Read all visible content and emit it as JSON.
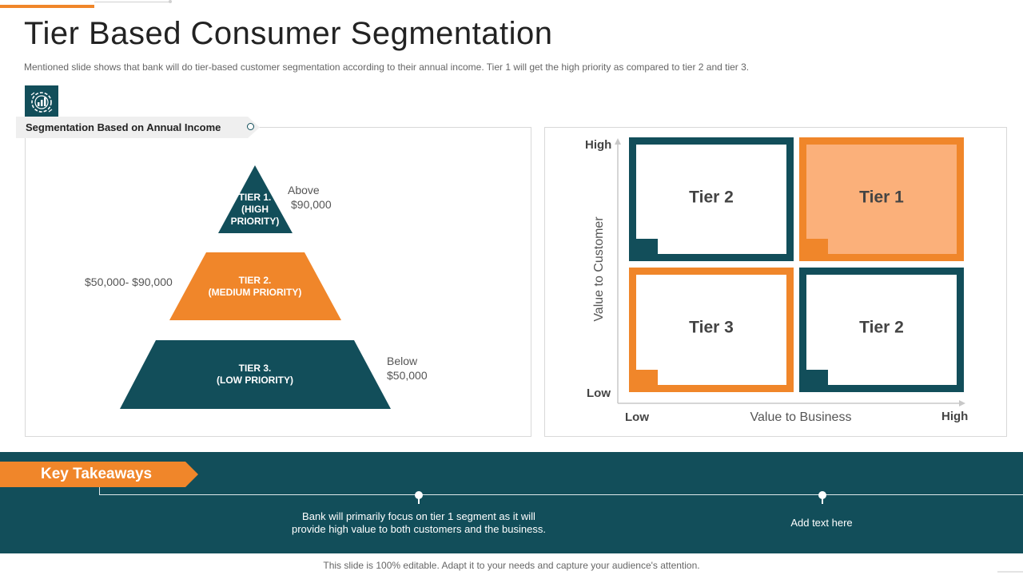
{
  "slide": {
    "title": "Tier Based Consumer Segmentation",
    "subtitle": "Mentioned slide shows that bank will do tier-based customer segmentation according to their annual income. Tier 1 will get the high priority as compared to tier 2 and tier 3.",
    "footer": "This slide is 100% editable. Adapt it to your needs and capture your audience's attention."
  },
  "colors": {
    "teal": "#124e5a",
    "orange": "#f0862a",
    "light_orange": "#fbb07a"
  },
  "icons": {
    "logo": "bar-chart-gear-icon"
  },
  "segmentation": {
    "tag": "Segmentation Based on Annual Income",
    "tiers": [
      {
        "line1": "TIER 1.",
        "line2": "(HIGH",
        "line3": "PRIORITY)",
        "label_line1": "Above",
        "label_line2": "$90,000"
      },
      {
        "line1": "TIER 2.",
        "line2": "(MEDIUM PRIORITY)",
        "label": "$50,000- $90,000"
      },
      {
        "line1": "TIER 3.",
        "line2": "(LOW PRIORITY)",
        "label_line1": "Below",
        "label_line2": "$50,000"
      }
    ]
  },
  "matrix": {
    "y_axis": "Value to Customer",
    "x_axis": "Value to Business",
    "y_high": "High",
    "y_low": "Low",
    "x_low": "Low",
    "x_high": "High",
    "quadrants": [
      {
        "label": "Tier 2"
      },
      {
        "label": "Tier 1"
      },
      {
        "label": "Tier 3"
      },
      {
        "label": "Tier 2"
      }
    ]
  },
  "takeaways": {
    "heading": "Key Takeaways",
    "items": [
      {
        "line1": "Bank will primarily focus on tier 1 segment as it will",
        "line2": "provide  high value to both customers and the business."
      },
      {
        "line1": "Add text here"
      }
    ]
  }
}
